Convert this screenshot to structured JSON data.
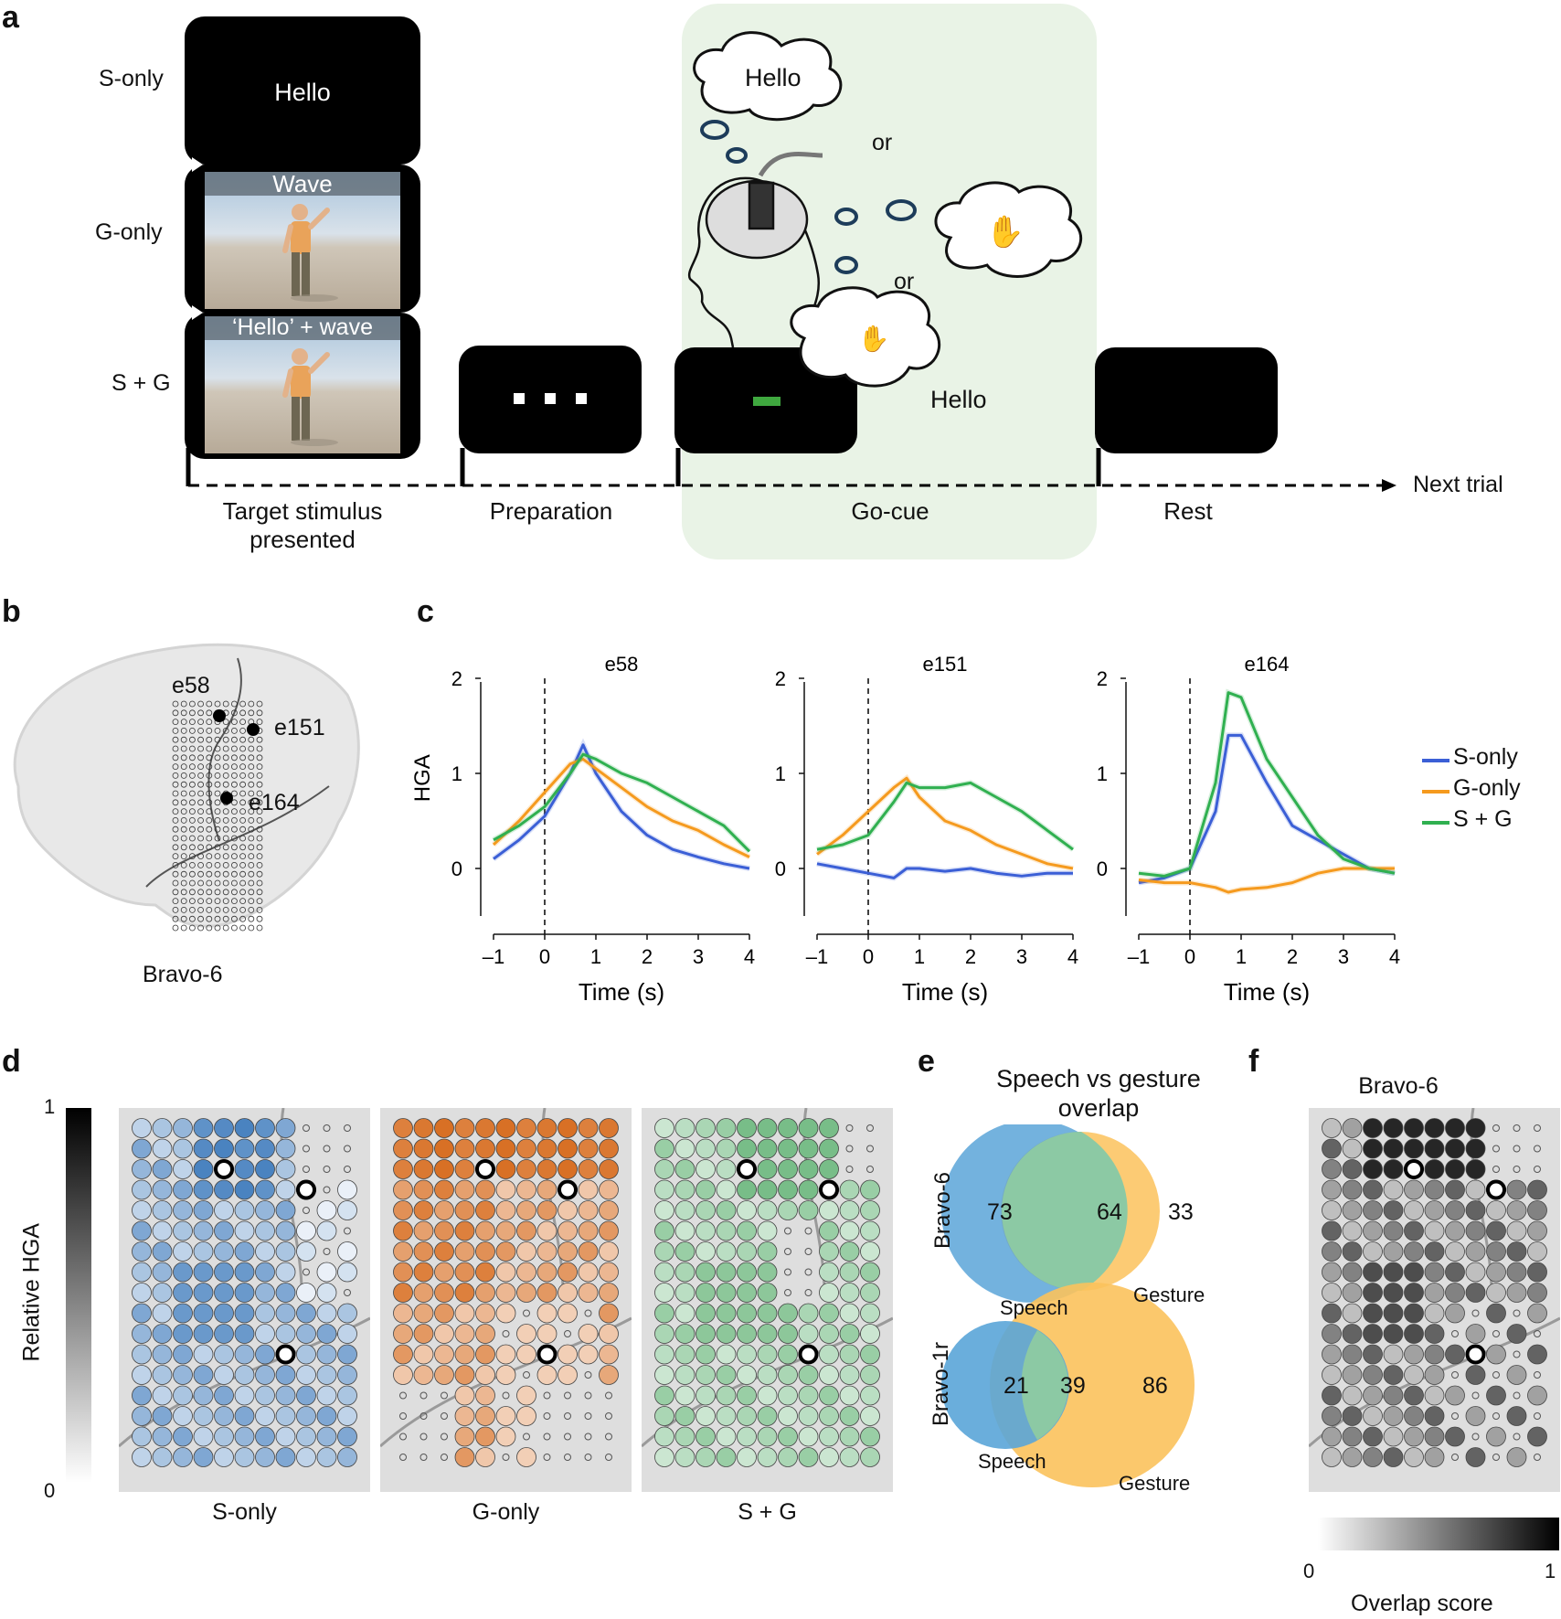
{
  "panel_letters": [
    "a",
    "b",
    "c",
    "d",
    "e",
    "f"
  ],
  "panel_a": {
    "conditions": [
      "S-only",
      "G-only",
      "S + G"
    ],
    "screen_texts": {
      "s_only": "Hello",
      "g_only": "Wave",
      "sg": "‘Hello’ + wave"
    },
    "timeline": [
      "Target stimulus presented",
      "Preparation",
      "Go-cue",
      "Rest"
    ],
    "next_trial": "Next trial",
    "thought_hello": "Hello",
    "thought_or1": "or",
    "thought_or2": "or",
    "thought_hello2": "Hello",
    "colors": {
      "go_bg": "#e9f3e6",
      "go_cue": "#3fa83f"
    }
  },
  "panel_b": {
    "electrodes": [
      "e58",
      "e151",
      "e164"
    ],
    "participant": "Bravo-6"
  },
  "chart_data": [
    {
      "type": "line",
      "title": "e58",
      "xlabel": "Time (s)",
      "ylabel": "HGA",
      "xlim": [
        -1,
        4
      ],
      "ylim": [
        -0.5,
        2
      ],
      "xticks": [
        -1,
        0,
        1,
        2,
        3,
        4
      ],
      "yticks": [
        0,
        1,
        2
      ],
      "x": [
        -1,
        -0.5,
        0,
        0.5,
        0.75,
        1,
        1.5,
        2,
        2.5,
        3,
        3.5,
        4
      ],
      "series": [
        {
          "name": "S-only",
          "color": "#3b5fd6",
          "values": [
            0.1,
            0.3,
            0.55,
            1.0,
            1.3,
            1.0,
            0.6,
            0.35,
            0.2,
            0.12,
            0.05,
            0.0
          ]
        },
        {
          "name": "G-only",
          "color": "#f59a1e",
          "values": [
            0.25,
            0.5,
            0.8,
            1.1,
            1.15,
            1.05,
            0.85,
            0.65,
            0.5,
            0.4,
            0.25,
            0.12
          ]
        },
        {
          "name": "S + G",
          "color": "#30b050",
          "values": [
            0.3,
            0.45,
            0.65,
            1.0,
            1.2,
            1.15,
            1.0,
            0.9,
            0.75,
            0.6,
            0.45,
            0.18
          ]
        }
      ]
    },
    {
      "type": "line",
      "title": "e151",
      "xlabel": "Time (s)",
      "ylabel": "",
      "xlim": [
        -1,
        4
      ],
      "ylim": [
        -0.5,
        2
      ],
      "xticks": [
        -1,
        0,
        1,
        2,
        3,
        4
      ],
      "yticks": [
        0,
        1,
        2
      ],
      "x": [
        -1,
        -0.5,
        0,
        0.5,
        0.75,
        1,
        1.5,
        2,
        2.5,
        3,
        3.5,
        4
      ],
      "series": [
        {
          "name": "S-only",
          "color": "#3b5fd6",
          "values": [
            0.05,
            0.0,
            -0.05,
            -0.1,
            0.0,
            0.0,
            -0.03,
            0.0,
            -0.05,
            -0.08,
            -0.05,
            -0.05
          ]
        },
        {
          "name": "G-only",
          "color": "#f59a1e",
          "values": [
            0.15,
            0.35,
            0.6,
            0.85,
            0.95,
            0.75,
            0.5,
            0.4,
            0.25,
            0.15,
            0.05,
            0.0
          ]
        },
        {
          "name": "S + G",
          "color": "#30b050",
          "values": [
            0.2,
            0.25,
            0.35,
            0.7,
            0.9,
            0.85,
            0.85,
            0.9,
            0.75,
            0.6,
            0.4,
            0.2
          ]
        }
      ]
    },
    {
      "type": "line",
      "title": "e164",
      "xlabel": "Time (s)",
      "ylabel": "",
      "xlim": [
        -1,
        4
      ],
      "ylim": [
        -0.5,
        2
      ],
      "xticks": [
        -1,
        0,
        1,
        2,
        3,
        4
      ],
      "yticks": [
        0,
        1,
        2
      ],
      "x": [
        -1,
        -0.5,
        0,
        0.5,
        0.75,
        1,
        1.5,
        2,
        2.5,
        3,
        3.5,
        4
      ],
      "series": [
        {
          "name": "S-only",
          "color": "#3b5fd6",
          "values": [
            -0.15,
            -0.1,
            0.0,
            0.6,
            1.4,
            1.4,
            0.9,
            0.45,
            0.3,
            0.15,
            0.0,
            -0.05
          ]
        },
        {
          "name": "G-only",
          "color": "#f59a1e",
          "values": [
            -0.12,
            -0.15,
            -0.15,
            -0.2,
            -0.25,
            -0.22,
            -0.2,
            -0.15,
            -0.05,
            0.0,
            0.0,
            0.0
          ]
        },
        {
          "name": "S + G",
          "color": "#30b050",
          "values": [
            -0.05,
            -0.08,
            0.0,
            0.9,
            1.85,
            1.8,
            1.15,
            0.75,
            0.35,
            0.1,
            0.0,
            -0.05
          ]
        }
      ]
    }
  ],
  "panel_c_legend": [
    "S-only",
    "G-only",
    "S + G"
  ],
  "panel_d": {
    "colorbar_label": "Relative HGA",
    "cb_top": "1",
    "cb_bottom": "0",
    "maps": [
      "S-only",
      "G-only",
      "S + G"
    ],
    "colors": {
      "s_only": "#2a6db5",
      "g_only": "#d4600d",
      "sg": "#2f9a48"
    }
  },
  "panel_e": {
    "title": "Speech vs gesture overlap",
    "venn": [
      {
        "participant": "Bravo-6",
        "speech": "73",
        "overlap": "64",
        "gesture": "33",
        "speech_label": "Speech",
        "gesture_label": "Gesture"
      },
      {
        "participant": "Bravo-1r",
        "speech": "21",
        "overlap": "39",
        "gesture": "86",
        "speech_label": "Speech",
        "gesture_label": "Gesture"
      }
    ],
    "colors": {
      "speech": "#5aa5d8",
      "gesture": "#fbc25c",
      "overlap": "#8cc9a4"
    }
  },
  "panel_f": {
    "title": "Bravo-6",
    "colorbar_label": "Overlap score",
    "cb_left": "0",
    "cb_right": "1"
  }
}
